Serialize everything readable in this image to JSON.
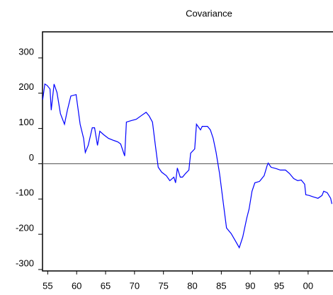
{
  "chart_data": {
    "type": "line",
    "title": "Covariance",
    "x": [
      1954.14,
      1954.5,
      1954.9,
      1955.4,
      1955.6,
      1956.1,
      1956.6,
      1957.2,
      1957.9,
      1958.4,
      1959.0,
      1959.9,
      1960.6,
      1961.2,
      1961.5,
      1962.0,
      1962.7,
      1963.1,
      1963.6,
      1964.0,
      1964.7,
      1965.5,
      1966.4,
      1967.1,
      1967.6,
      1968.1,
      1968.3,
      1968.6,
      1969.4,
      1970.3,
      1971.3,
      1972.0,
      1972.5,
      1973.1,
      1973.6,
      1974.1,
      1974.7,
      1975.5,
      1976.1,
      1976.8,
      1977.1,
      1977.4,
      1977.9,
      1978.3,
      1978.8,
      1979.4,
      1979.7,
      1980.4,
      1980.7,
      1981.4,
      1981.7,
      1982.1,
      1982.6,
      1983.1,
      1983.6,
      1984.1,
      1984.7,
      1985.4,
      1985.9,
      1986.7,
      1987.4,
      1988.1,
      1988.7,
      1989.4,
      1989.8,
      1990.3,
      1990.8,
      1991.6,
      1992.4,
      1992.9,
      1993.1,
      1993.6,
      1994.5,
      1995.2,
      1996.1,
      1996.8,
      1997.5,
      1998.2,
      1998.8,
      1999.4,
      1999.6,
      2000.2,
      2000.9,
      2001.7,
      2002.4,
      2002.7,
      2003.3,
      2003.9,
      2004.1
    ],
    "series": [
      {
        "color": "#0000ff",
        "values": [
          182,
          226,
          222,
          212,
          152,
          226,
          202,
          142,
          112,
          152,
          192,
          196,
          112,
          72,
          32,
          52,
          102,
          102,
          52,
          92,
          82,
          72,
          66,
          62,
          56,
          32,
          22,
          118,
          122,
          126,
          138,
          146,
          136,
          118,
          52,
          -10,
          -24,
          -34,
          -48,
          -38,
          -54,
          -12,
          -38,
          -38,
          -28,
          -18,
          30,
          42,
          112,
          96,
          106,
          106,
          106,
          96,
          72,
          32,
          -28,
          -118,
          -182,
          -198,
          -218,
          -238,
          -208,
          -154,
          -128,
          -78,
          -54,
          -50,
          -34,
          -6,
          2,
          -10,
          -14,
          -18,
          -18,
          -28,
          -42,
          -48,
          -46,
          -58,
          -88,
          -90,
          -94,
          -98,
          -90,
          -78,
          -82,
          -98,
          -114
        ]
      }
    ],
    "xlim": [
      1954.1,
      2004.3
    ],
    "xticks": [
      {
        "value": 1955,
        "label": "55"
      },
      {
        "value": 1960,
        "label": "60"
      },
      {
        "value": 1965,
        "label": "65"
      },
      {
        "value": 1970,
        "label": "70"
      },
      {
        "value": 1975,
        "label": "75"
      },
      {
        "value": 1980,
        "label": "80"
      },
      {
        "value": 1985,
        "label": "85"
      },
      {
        "value": 1990,
        "label": "90"
      },
      {
        "value": 1995,
        "label": "95"
      },
      {
        "value": 2000,
        "label": "00"
      }
    ],
    "ylim": [
      -304,
      374
    ],
    "yticks": [
      -300,
      -200,
      -100,
      0,
      100,
      200,
      300
    ],
    "zero_line": true
  }
}
